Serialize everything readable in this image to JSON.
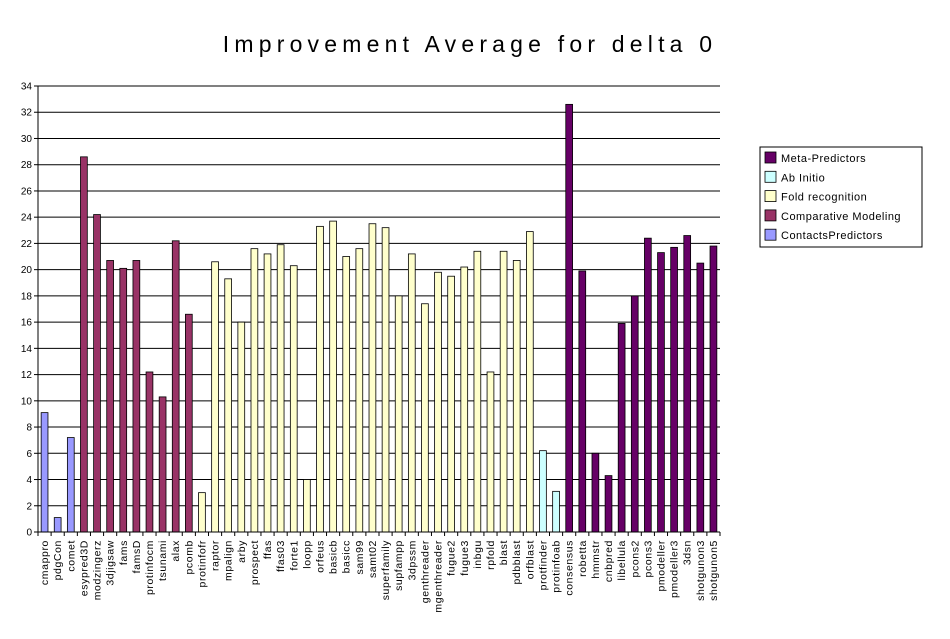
{
  "chart_data": {
    "type": "bar",
    "title": "Improvement Average for delta 0",
    "xlabel": "",
    "ylabel": "",
    "ylim": [
      0,
      34
    ],
    "ytick_step": 2,
    "yticks": [
      "0",
      "2",
      "4",
      "6",
      "8",
      "10",
      "12",
      "14",
      "16",
      "18",
      "20",
      "22",
      "24",
      "26",
      "28",
      "30",
      "32",
      "34"
    ],
    "grid": true,
    "legend_position": "right",
    "groups": [
      {
        "name": "Meta-Predictors",
        "color": "#660066"
      },
      {
        "name": "Ab Initio",
        "color": "#CCFFFF"
      },
      {
        "name": "Fold recognition",
        "color": "#FFFFCC"
      },
      {
        "name": "Comparative Modeling",
        "color": "#993366"
      },
      {
        "name": "ContactsPredictors",
        "color": "#9999FF"
      }
    ],
    "categories": [
      "cmappro",
      "pdgCon",
      "comet",
      "esypred3D",
      "modzingerz",
      "3djigsaw",
      "fams",
      "famsD",
      "protinfocm",
      "tsunami",
      "alax",
      "pcomb",
      "protinfofr",
      "raptor",
      "mpalign",
      "arby",
      "prospect",
      "ffas",
      "ffas03",
      "forte1",
      "loopp",
      "orfeus",
      "basicb",
      "basicc",
      "sam99",
      "samt02",
      "superfamily",
      "supfampp",
      "3dpssm",
      "genthreader",
      "mgenthreader",
      "fugue2",
      "fugue3",
      "inbgu",
      "rpfold",
      "blast",
      "pdbblast",
      "orfblast",
      "protfinder",
      "protinfoab",
      "consensus",
      "robetta",
      "hmmstr",
      "cnbpred",
      "libellula",
      "pcons2",
      "pcons3",
      "pmodeller",
      "pmodeller3",
      "3dsn",
      "shotgunon3",
      "shotgunon5"
    ],
    "values": [
      9.1,
      1.1,
      7.2,
      28.6,
      24.2,
      20.7,
      20.1,
      20.7,
      12.2,
      10.3,
      22.2,
      16.6,
      3.0,
      20.6,
      19.3,
      16.0,
      21.6,
      21.2,
      21.9,
      20.3,
      4.0,
      23.3,
      23.7,
      21.0,
      21.6,
      23.5,
      23.2,
      18.0,
      21.2,
      17.4,
      19.8,
      19.5,
      20.2,
      21.4,
      12.2,
      21.4,
      20.7,
      22.9,
      6.2,
      3.1,
      32.6,
      19.9,
      6.0,
      4.3,
      15.9,
      18.0,
      22.4,
      21.3,
      21.7,
      22.6,
      20.5,
      21.8
    ],
    "category_group": [
      "ContactsPredictors",
      "ContactsPredictors",
      "ContactsPredictors",
      "Comparative Modeling",
      "Comparative Modeling",
      "Comparative Modeling",
      "Comparative Modeling",
      "Comparative Modeling",
      "Comparative Modeling",
      "Comparative Modeling",
      "Comparative Modeling",
      "Comparative Modeling",
      "Fold recognition",
      "Fold recognition",
      "Fold recognition",
      "Fold recognition",
      "Fold recognition",
      "Fold recognition",
      "Fold recognition",
      "Fold recognition",
      "Fold recognition",
      "Fold recognition",
      "Fold recognition",
      "Fold recognition",
      "Fold recognition",
      "Fold recognition",
      "Fold recognition",
      "Fold recognition",
      "Fold recognition",
      "Fold recognition",
      "Fold recognition",
      "Fold recognition",
      "Fold recognition",
      "Fold recognition",
      "Fold recognition",
      "Fold recognition",
      "Fold recognition",
      "Fold recognition",
      "Ab Initio",
      "Ab Initio",
      "Meta-Predictors",
      "Meta-Predictors",
      "Meta-Predictors",
      "Meta-Predictors",
      "Meta-Predictors",
      "Meta-Predictors",
      "Meta-Predictors",
      "Meta-Predictors",
      "Meta-Predictors",
      "Meta-Predictors",
      "Meta-Predictors",
      "Meta-Predictors"
    ]
  }
}
